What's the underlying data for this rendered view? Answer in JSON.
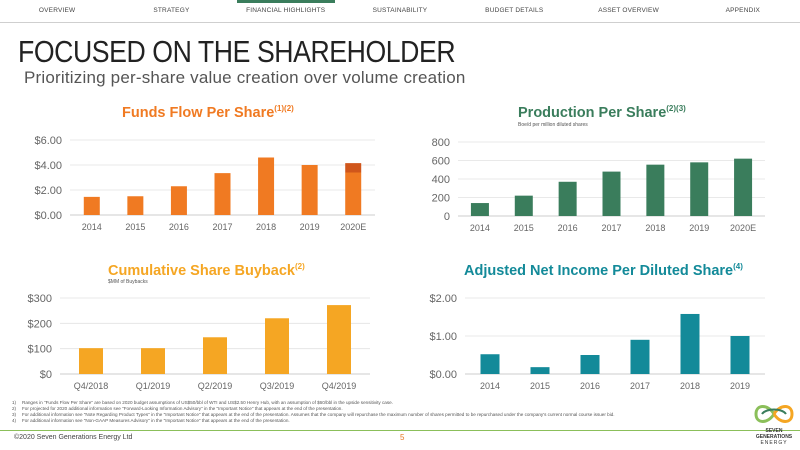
{
  "nav": [
    {
      "label": "OVERVIEW",
      "active": false
    },
    {
      "label": "STRATEGY",
      "active": false
    },
    {
      "label": "FINANCIAL HIGHLIGHTS",
      "active": true
    },
    {
      "label": "SUSTAINABILITY",
      "active": false
    },
    {
      "label": "BUDGET DETAILS",
      "active": false
    },
    {
      "label": "ASSET OVERVIEW",
      "active": false
    },
    {
      "label": "APPENDIX",
      "active": false
    }
  ],
  "page": {
    "title": "FOCUSED ON THE SHAREHOLDER",
    "subtitle": "Prioritizing per-share value creation over volume creation"
  },
  "chart_data": [
    {
      "type": "bar",
      "title": "Funds Flow Per Share",
      "title_sup": "(1)(2)",
      "subtitle": "",
      "color": "#f07a22",
      "accent_color": "#d0561b",
      "categories": [
        "2014",
        "2015",
        "2016",
        "2017",
        "2018",
        "2019",
        "2020E"
      ],
      "values": [
        1.45,
        1.5,
        2.3,
        3.35,
        4.6,
        4.0,
        3.4
      ],
      "range_top": [
        null,
        null,
        null,
        null,
        null,
        null,
        4.15
      ],
      "yticks": [
        "$0.00",
        "$2.00",
        "$4.00",
        "$6.00"
      ],
      "ylim": [
        0,
        6
      ],
      "grid": true
    },
    {
      "type": "bar",
      "title": "Production Per Share",
      "title_sup": "(2)(3)",
      "subtitle": "Boe/d per million diluted shares",
      "color": "#3a7d5c",
      "categories": [
        "2014",
        "2015",
        "2016",
        "2017",
        "2018",
        "2019",
        "2020E"
      ],
      "values": [
        140,
        220,
        370,
        480,
        555,
        580,
        620
      ],
      "yticks": [
        "0",
        "200",
        "400",
        "600",
        "800"
      ],
      "ylim": [
        0,
        800
      ],
      "grid": true
    },
    {
      "type": "bar",
      "title": "Cumulative Share Buyback",
      "title_sup": "(2)",
      "subtitle": "$MM of Buybacks",
      "color": "#f5a623",
      "categories": [
        "Q4/2018",
        "Q1/2019",
        "Q2/2019",
        "Q3/2019",
        "Q4/2019"
      ],
      "values": [
        102,
        102,
        145,
        220,
        272
      ],
      "yticks": [
        "$0",
        "$100",
        "$200",
        "$300"
      ],
      "ylim": [
        0,
        300
      ],
      "grid": true
    },
    {
      "type": "bar",
      "title": "Adjusted Net Income Per Diluted Share",
      "title_sup": "(4)",
      "subtitle": "",
      "color": "#138a99",
      "categories": [
        "2014",
        "2015",
        "2016",
        "2017",
        "2018",
        "2019"
      ],
      "values": [
        0.52,
        0.18,
        0.5,
        0.9,
        1.58,
        1.0
      ],
      "yticks": [
        "$0.00",
        "$1.00",
        "$2.00"
      ],
      "ylim": [
        0,
        2
      ],
      "grid": true
    }
  ],
  "footnotes": [
    {
      "num": "1)",
      "text": "Ranges in \"Funds Flow Per Share\" are based on 2020 budget assumptions of US$50/bbl of WTI and US$2.50 Henry Hub, with an assumption of $60/bbl in the upside sensitivity case."
    },
    {
      "num": "2)",
      "text": "For projected for 2020 additional information see \"Forward-Looking Information Advisory\" in the \"Important Notice\" that appears at the end of the presentation."
    },
    {
      "num": "3)",
      "text": "For additional information see \"Note Regarding Product Types\" in the \"Important Notice\" that appears at the end of the presentation. Assumes that the company will repurchase the maximum number of shares permitted to be repurchased under the company's current normal course issuer bid."
    },
    {
      "num": "4)",
      "text": "For additional information see \"Non-GAAP Measures Advisory\" in the \"Important Notice\" that appears at the end of the presentation."
    }
  ],
  "footer": {
    "copyright": "©2020 Seven Generations Energy Ltd",
    "page_number": "5"
  },
  "logo": {
    "line1": "SEVEN GENERATIONS",
    "line2": "ENERGY",
    "colors": [
      "#8bbf5a",
      "#f5a623",
      "#3a7d5c"
    ]
  }
}
